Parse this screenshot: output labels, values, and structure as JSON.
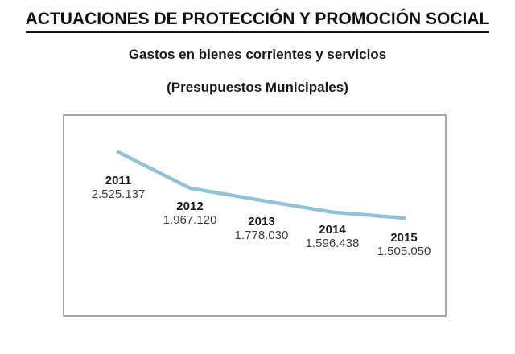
{
  "header": {
    "title": "ACTUACIONES DE PROTECCIÓN Y PROMOCIÓN SOCIAL",
    "subtitle1": "Gastos en bienes corrientes y servicios",
    "subtitle2": "(Presupuestos Municipales)"
  },
  "chart_data": {
    "type": "line",
    "categories": [
      "2011",
      "2012",
      "2013",
      "2014",
      "2015"
    ],
    "values": [
      2525137,
      1967120,
      1778030,
      1596438,
      1505050
    ],
    "value_labels": [
      "2.525.137",
      "1.967.120",
      "1.778.030",
      "1.596.438",
      "1.505.050"
    ],
    "title": "Gastos en bienes corrientes y servicios (Presupuestos Municipales)",
    "xlabel": "",
    "ylabel": "",
    "legend": "none",
    "grid": false,
    "axes_visible": false,
    "data_labels": "category-name-and-value-below-each-point",
    "line_color": "#92c2d6",
    "year_label_color": "#1a1a1a",
    "value_label_color": "#3f3f3f"
  }
}
